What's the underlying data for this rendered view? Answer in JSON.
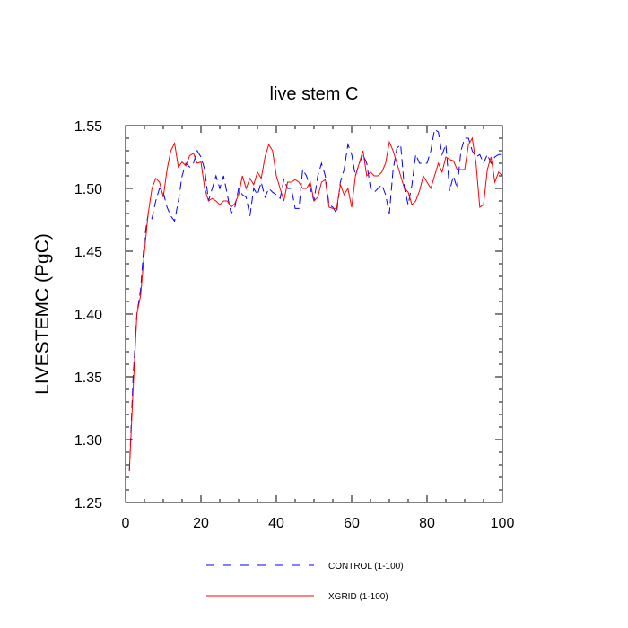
{
  "chart_data": {
    "type": "line",
    "title": "live stem C",
    "xlabel": "",
    "ylabel": "LIVESTEMC  (PgC)",
    "xlim": [
      0,
      100
    ],
    "ylim": [
      1.25,
      1.55
    ],
    "x_ticks": [
      "0",
      "20",
      "40",
      "60",
      "80",
      "100"
    ],
    "y_ticks": [
      "1.25",
      "1.30",
      "1.35",
      "1.40",
      "1.45",
      "1.50",
      "1.55"
    ],
    "legend_position": "bottom",
    "grid": false,
    "series": [
      {
        "name": "CONTROL (1-100)",
        "color": "#0000ff",
        "dash": "dashed",
        "x": [
          1,
          2,
          3,
          4,
          5,
          6,
          7,
          8,
          9,
          10,
          11,
          12,
          13,
          14,
          15,
          16,
          17,
          18,
          19,
          20,
          21,
          22,
          23,
          24,
          25,
          26,
          27,
          28,
          29,
          30,
          31,
          32,
          33,
          34,
          35,
          36,
          37,
          38,
          39,
          40,
          41,
          42,
          43,
          44,
          45,
          46,
          47,
          48,
          49,
          50,
          51,
          52,
          53,
          54,
          55,
          56,
          57,
          58,
          59,
          60,
          61,
          62,
          63,
          64,
          65,
          66,
          67,
          68,
          69,
          70,
          71,
          72,
          73,
          74,
          75,
          76,
          77,
          78,
          79,
          80,
          81,
          82,
          83,
          84,
          85,
          86,
          87,
          88,
          89,
          90,
          91,
          92,
          93,
          94,
          95,
          96,
          97,
          98,
          99,
          100
        ],
        "values": [
          1.275,
          1.35,
          1.4,
          1.42,
          1.46,
          1.48,
          1.476,
          1.49,
          1.5,
          1.497,
          1.485,
          1.478,
          1.474,
          1.49,
          1.51,
          1.52,
          1.517,
          1.52,
          1.53,
          1.525,
          1.515,
          1.49,
          1.5,
          1.51,
          1.5,
          1.51,
          1.495,
          1.48,
          1.485,
          1.5,
          1.495,
          1.493,
          1.478,
          1.5,
          1.495,
          1.505,
          1.493,
          1.5,
          1.497,
          1.495,
          1.492,
          1.507,
          1.5,
          1.5,
          1.484,
          1.484,
          1.515,
          1.51,
          1.5,
          1.49,
          1.51,
          1.52,
          1.51,
          1.487,
          1.485,
          1.48,
          1.505,
          1.515,
          1.535,
          1.527,
          1.51,
          1.52,
          1.527,
          1.52,
          1.5,
          1.497,
          1.5,
          1.503,
          1.495,
          1.48,
          1.515,
          1.532,
          1.535,
          1.5,
          1.487,
          1.503,
          1.527,
          1.52,
          1.52,
          1.52,
          1.53,
          1.547,
          1.545,
          1.527,
          1.535,
          1.498,
          1.51,
          1.5,
          1.53,
          1.54,
          1.54,
          1.53,
          1.525,
          1.527,
          1.52,
          1.527,
          1.52,
          1.525,
          1.527,
          1.527
        ]
      },
      {
        "name": "XGRID (1-100)",
        "color": "#ff0000",
        "dash": "solid",
        "x": [
          1,
          2,
          3,
          4,
          5,
          6,
          7,
          8,
          9,
          10,
          11,
          12,
          13,
          14,
          15,
          16,
          17,
          18,
          19,
          20,
          21,
          22,
          23,
          24,
          25,
          26,
          27,
          28,
          29,
          30,
          31,
          32,
          33,
          34,
          35,
          36,
          37,
          38,
          39,
          40,
          41,
          42,
          43,
          44,
          45,
          46,
          47,
          48,
          49,
          50,
          51,
          52,
          53,
          54,
          55,
          56,
          57,
          58,
          59,
          60,
          61,
          62,
          63,
          64,
          65,
          66,
          67,
          68,
          69,
          70,
          71,
          72,
          73,
          74,
          75,
          76,
          77,
          78,
          79,
          80,
          81,
          82,
          83,
          84,
          85,
          86,
          87,
          88,
          89,
          90,
          91,
          92,
          93,
          94,
          95,
          96,
          97,
          98,
          99,
          100
        ],
        "values": [
          1.275,
          1.34,
          1.4,
          1.415,
          1.45,
          1.48,
          1.5,
          1.508,
          1.505,
          1.493,
          1.515,
          1.53,
          1.536,
          1.517,
          1.521,
          1.518,
          1.526,
          1.528,
          1.52,
          1.521,
          1.5,
          1.49,
          1.492,
          1.49,
          1.487,
          1.49,
          1.49,
          1.485,
          1.488,
          1.495,
          1.51,
          1.5,
          1.508,
          1.503,
          1.513,
          1.508,
          1.525,
          1.535,
          1.53,
          1.51,
          1.5,
          1.49,
          1.505,
          1.505,
          1.507,
          1.505,
          1.5,
          1.5,
          1.505,
          1.49,
          1.493,
          1.505,
          1.507,
          1.485,
          1.484,
          1.484,
          1.503,
          1.495,
          1.5,
          1.485,
          1.51,
          1.52,
          1.53,
          1.51,
          1.513,
          1.51,
          1.51,
          1.513,
          1.52,
          1.537,
          1.53,
          1.52,
          1.51,
          1.5,
          1.497,
          1.487,
          1.49,
          1.498,
          1.51,
          1.505,
          1.5,
          1.51,
          1.52,
          1.513,
          1.525,
          1.523,
          1.522,
          1.515,
          1.515,
          1.515,
          1.535,
          1.54,
          1.52,
          1.485,
          1.487,
          1.515,
          1.525,
          1.505,
          1.513,
          1.51
        ]
      }
    ]
  }
}
